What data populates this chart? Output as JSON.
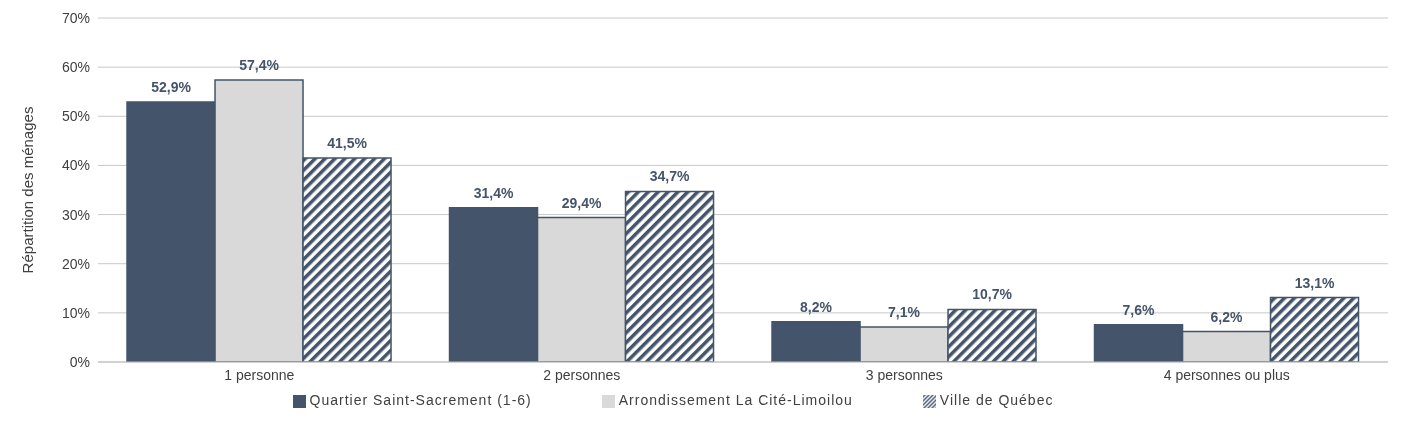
{
  "chart_data": {
    "type": "bar",
    "ylabel": "Répartition des ménages",
    "categories": [
      "1 personne",
      "2 personnes",
      "3 personnes",
      "4 personnes ou plus"
    ],
    "series": [
      {
        "name": "Quartier Saint-Sacrement (1-6)",
        "color": "#44546a",
        "values": [
          52.9,
          31.4,
          8.2,
          7.6
        ],
        "value_labels": [
          "52,9%",
          "31,4%",
          "8,2%",
          "7,6%"
        ]
      },
      {
        "name": "Arrondissement La Cité-Limoilou",
        "color": "#d9d9d9",
        "values": [
          57.4,
          29.4,
          7.1,
          6.2
        ],
        "value_labels": [
          "57,4%",
          "29,4%",
          "7,1%",
          "6,2%"
        ]
      },
      {
        "name": "Ville de Québec",
        "color": "#44546a",
        "values": [
          41.5,
          34.7,
          10.7,
          13.1
        ],
        "value_labels": [
          "41,5%",
          "34,7%",
          "10,7%",
          "13,1%"
        ]
      }
    ],
    "ylim": [
      0,
      70
    ],
    "yticks": [
      {
        "value": 0,
        "label": "0%"
      },
      {
        "value": 10,
        "label": "10%"
      },
      {
        "value": 20,
        "label": "20%"
      },
      {
        "value": 30,
        "label": "30%"
      },
      {
        "value": 40,
        "label": "40%"
      },
      {
        "value": 50,
        "label": "50%"
      },
      {
        "value": 60,
        "label": "60%"
      },
      {
        "value": 70,
        "label": "70%"
      }
    ],
    "grid": "y",
    "legend": "bottom"
  }
}
